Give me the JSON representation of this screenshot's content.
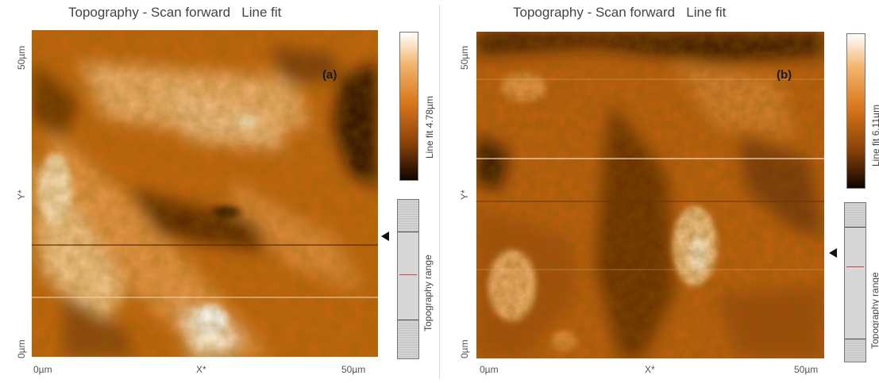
{
  "panels": [
    {
      "title": "Topography - Scan forward   Line fit",
      "label": "(a)",
      "y_top": "50µm",
      "y_mid": "Y*",
      "y_bottom": "0µm",
      "x_left": "0µm",
      "x_mid": "X*",
      "x_right": "50µm",
      "colorbar_label": "Line fit 4.78µm",
      "range_label": "Topography range"
    },
    {
      "title": "Topography - Scan forward   Line fit",
      "label": "(b)",
      "y_top": "50µm",
      "y_mid": "Y*",
      "y_bottom": "0µm",
      "x_left": "0µm",
      "x_mid": "X*",
      "x_right": "50µm",
      "colorbar_label": "Line fit 6.11µm",
      "range_label": "Topography range"
    }
  ],
  "colors": {
    "dark": "#1a0a00",
    "mid": "#c96a10",
    "light": "#ffffff"
  }
}
